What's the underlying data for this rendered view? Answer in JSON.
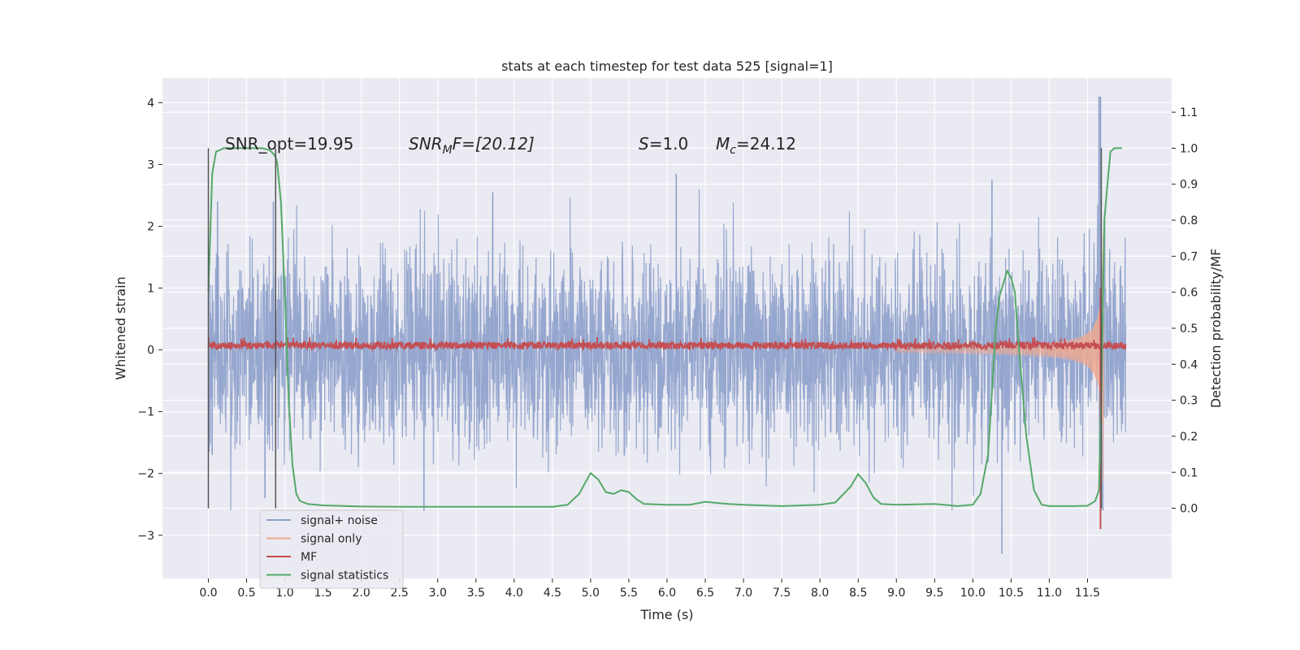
{
  "chart_data": {
    "type": "line",
    "title": "stats at each timestep for test data 525 [signal=1]",
    "xlabel": "Time (s)",
    "ylabel": "Whitened strain",
    "ylabel_right": "Detection probability/MF",
    "xlim": [
      -0.6,
      12.6
    ],
    "ylim": [
      -3.7,
      4.4
    ],
    "ylim_right": [
      -0.195,
      1.195
    ],
    "x_ticks": [
      0.0,
      0.5,
      1.0,
      1.5,
      2.0,
      2.5,
      3.0,
      3.5,
      4.0,
      4.5,
      5.0,
      5.5,
      6.0,
      6.5,
      7.0,
      7.5,
      8.0,
      8.5,
      9.0,
      9.5,
      10.0,
      10.5,
      11.0,
      11.5
    ],
    "x_tick_labels": [
      "0.0",
      "0.5",
      "1.0",
      "1.5",
      "2.0",
      "2.5",
      "3.0",
      "3.5",
      "4.0",
      "4.5",
      "5.0",
      "5.5",
      "6.0",
      "6.5",
      "7.0",
      "7.5",
      "8.0",
      "8.5",
      "9.0",
      "9.5",
      "10.0",
      "10.5",
      "11.0",
      "11.5"
    ],
    "y_ticks": [
      -3,
      -2,
      -1,
      0,
      1,
      2,
      3,
      4
    ],
    "y_tick_labels": [
      "−3",
      "−2",
      "−1",
      "0",
      "1",
      "2",
      "3",
      "4"
    ],
    "y_ticks_right": [
      0.0,
      0.1,
      0.2,
      0.3,
      0.4,
      0.5,
      0.6,
      0.7,
      0.8,
      0.9,
      1.0,
      1.1
    ],
    "y_tick_labels_right": [
      "0.0",
      "0.1",
      "0.2",
      "0.3",
      "0.4",
      "0.5",
      "0.6",
      "0.7",
      "0.8",
      "0.9",
      "1.0",
      "1.1"
    ],
    "grid": true,
    "legend_position": "lower-left",
    "annotations": {
      "snr_opt": "SNR_opt=19.95",
      "snr_mf_symbol": "SNR",
      "snr_mf_sub": "M",
      "snr_mf_rest": "F=[20.12]",
      "s_symbol": "S",
      "s_value": "=1.0",
      "mc_symbol": "M",
      "mc_sub": "c",
      "mc_value": "=24.12"
    },
    "vlines": [
      {
        "x": 0.0,
        "y_range_right": [
          0.0,
          1.0
        ],
        "color": "#555555"
      },
      {
        "x": 0.88,
        "y_range_right": [
          0.0,
          1.0
        ],
        "color": "#555555"
      },
      {
        "x": 11.68,
        "y_range_right": [
          0.0,
          1.0
        ],
        "color": "#555555"
      }
    ],
    "series": [
      {
        "name": "signal+ noise",
        "color": "#8da0cb",
        "axis": "left",
        "kind": "noise",
        "x_range": [
          0.0,
          12.0
        ],
        "typical_amplitude": 1.45,
        "spikes": [
          {
            "x": 0.05,
            "y": -1.7
          },
          {
            "x": 0.12,
            "y": 2.4
          },
          {
            "x": 0.85,
            "y": 2.4
          },
          {
            "x": 0.74,
            "y": -2.4
          },
          {
            "x": 2.82,
            "y": -2.6
          },
          {
            "x": 3.72,
            "y": 2.55
          },
          {
            "x": 6.12,
            "y": 2.85
          },
          {
            "x": 10.25,
            "y": 2.75
          },
          {
            "x": 10.38,
            "y": -3.3
          },
          {
            "x": 11.65,
            "y": 4.1
          },
          {
            "x": 11.67,
            "y": 4.1
          },
          {
            "x": 11.7,
            "y": -2.6
          }
        ]
      },
      {
        "name": "signal only",
        "color": "#f0a98f",
        "axis": "left",
        "kind": "chirp",
        "x_range": [
          9.0,
          11.72
        ],
        "peak_amplitude": 3.1
      },
      {
        "name": "MF",
        "color": "#c44e52",
        "axis": "left",
        "kind": "mf",
        "x_range": [
          0.0,
          12.0
        ],
        "baseline": 0.07,
        "spike": {
          "x": 11.67,
          "y_max": 1.0,
          "y_min": -2.9
        }
      },
      {
        "name": "signal statistics",
        "color": "#55a868",
        "axis": "right",
        "kind": "line",
        "x": [
          0.0,
          0.05,
          0.1,
          0.15,
          0.2,
          0.3,
          0.5,
          0.7,
          0.8,
          0.85,
          0.88,
          0.9,
          0.95,
          1.0,
          1.05,
          1.1,
          1.15,
          1.2,
          1.3,
          1.5,
          2.0,
          2.5,
          3.0,
          3.5,
          4.0,
          4.5,
          4.7,
          4.85,
          5.0,
          5.1,
          5.2,
          5.3,
          5.4,
          5.5,
          5.6,
          5.7,
          6.0,
          6.3,
          6.5,
          6.8,
          7.0,
          7.5,
          8.0,
          8.2,
          8.4,
          8.5,
          8.6,
          8.7,
          8.8,
          9.0,
          9.5,
          9.8,
          10.0,
          10.1,
          10.2,
          10.3,
          10.35,
          10.45,
          10.5,
          10.55,
          10.6,
          10.7,
          10.8,
          10.9,
          11.0,
          11.3,
          11.5,
          11.6,
          11.65,
          11.68,
          11.72,
          11.76,
          11.8,
          11.85,
          11.9,
          11.95
        ],
        "y": [
          0.6,
          0.93,
          0.99,
          0.995,
          1.0,
          1.0,
          1.0,
          1.0,
          0.995,
          0.985,
          0.975,
          0.96,
          0.85,
          0.6,
          0.3,
          0.12,
          0.04,
          0.02,
          0.012,
          0.008,
          0.005,
          0.004,
          0.004,
          0.004,
          0.004,
          0.004,
          0.01,
          0.04,
          0.098,
          0.08,
          0.045,
          0.04,
          0.05,
          0.045,
          0.025,
          0.012,
          0.01,
          0.01,
          0.018,
          0.012,
          0.01,
          0.006,
          0.01,
          0.016,
          0.06,
          0.095,
          0.07,
          0.03,
          0.012,
          0.01,
          0.012,
          0.006,
          0.01,
          0.04,
          0.15,
          0.5,
          0.59,
          0.66,
          0.64,
          0.6,
          0.45,
          0.2,
          0.05,
          0.01,
          0.006,
          0.006,
          0.007,
          0.02,
          0.05,
          0.3,
          0.8,
          0.9,
          0.99,
          1.0,
          1.0,
          1.0
        ]
      }
    ]
  }
}
